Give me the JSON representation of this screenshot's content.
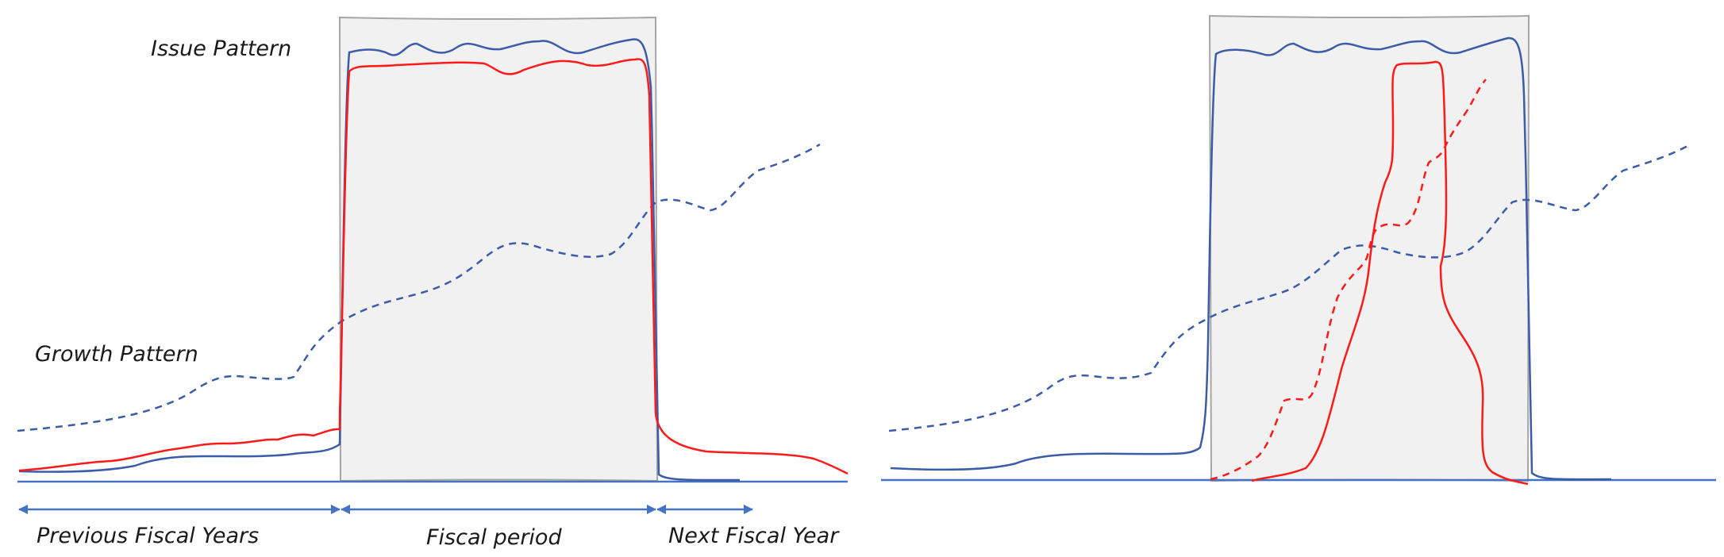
{
  "labels": {
    "issue_pattern": "Issue Pattern",
    "growth_pattern": "Growth Pattern",
    "previous_fiscal_years": "Previous Fiscal Years",
    "fiscal_period": "Fiscal period",
    "next_fiscal_year": "Next Fiscal Year"
  },
  "colors": {
    "blue_line": "#3b5ca8",
    "red_line": "#ff1a1a",
    "axis_blue": "#4472c4",
    "box_fill": "#f1f1f1",
    "box_stroke": "#a6a6a6",
    "text": "#1a1a1a"
  },
  "panels": [
    {
      "name": "left-panel",
      "curves": [
        "issue-pattern-blue",
        "issue-pattern-red",
        "growth-pattern-dashed-blue"
      ]
    },
    {
      "name": "right-panel",
      "curves": [
        "issue-pattern-blue",
        "red-solid-peak",
        "red-dashed-growth",
        "growth-pattern-dashed-blue"
      ]
    }
  ]
}
